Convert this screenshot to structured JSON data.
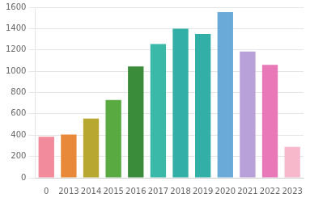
{
  "chart_data": {
    "type": "bar",
    "categories": [
      "0",
      "2013",
      "2014",
      "2015",
      "2016",
      "2017",
      "2018",
      "2019",
      "2020",
      "2021",
      "2022",
      "2023"
    ],
    "values": [
      385,
      405,
      555,
      730,
      1045,
      1255,
      1400,
      1350,
      1555,
      1185,
      1060,
      290
    ],
    "colors": [
      "#f28b9b",
      "#e8893a",
      "#b8a832",
      "#5aaa42",
      "#3a8c3a",
      "#3ab8a8",
      "#32b0a8",
      "#32b0a8",
      "#6aaad8",
      "#b8a0d8",
      "#e878b8",
      "#f8b8cc"
    ],
    "ylim": [
      0,
      1600
    ],
    "yticks": [
      0,
      200,
      400,
      600,
      800,
      1000,
      1200,
      1400,
      1600
    ],
    "grid": true
  }
}
